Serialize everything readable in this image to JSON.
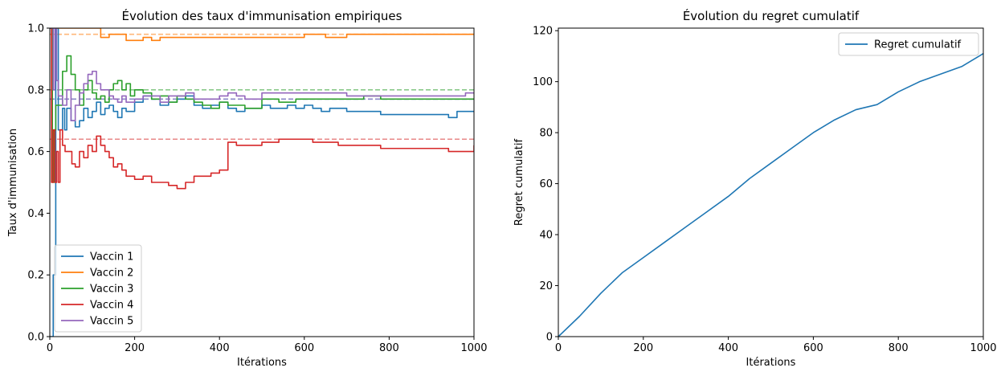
{
  "chart_data": [
    {
      "type": "line",
      "title": "Évolution des taux d'immunisation empiriques",
      "xlabel": "Itérations",
      "ylabel": "Taux d'immunisation",
      "xlim": [
        0,
        1000
      ],
      "ylim": [
        0,
        1.0
      ],
      "xticks": [
        0,
        200,
        400,
        600,
        800,
        1000
      ],
      "yticks": [
        0.0,
        0.2,
        0.4,
        0.6,
        0.8,
        1.0
      ],
      "legend_position": "lower-left",
      "grid": false,
      "series": [
        {
          "name": "Vaccin 1",
          "color": "#1f77b4",
          "true_rate": 0.77,
          "x": [
            0,
            2,
            8,
            14,
            20,
            25,
            30,
            35,
            40,
            50,
            60,
            70,
            80,
            90,
            100,
            110,
            120,
            130,
            140,
            150,
            160,
            170,
            180,
            200,
            220,
            240,
            260,
            280,
            300,
            320,
            340,
            360,
            380,
            400,
            420,
            440,
            460,
            480,
            500,
            520,
            540,
            560,
            580,
            600,
            620,
            640,
            660,
            680,
            700,
            740,
            780,
            820,
            860,
            900,
            940,
            960,
            980,
            1000
          ],
          "y": [
            0.0,
            0.0,
            0.2,
            1.0,
            0.67,
            0.67,
            0.74,
            0.67,
            0.74,
            0.7,
            0.68,
            0.7,
            0.74,
            0.71,
            0.73,
            0.76,
            0.72,
            0.74,
            0.75,
            0.73,
            0.71,
            0.74,
            0.73,
            0.76,
            0.78,
            0.77,
            0.75,
            0.76,
            0.77,
            0.78,
            0.75,
            0.74,
            0.75,
            0.76,
            0.74,
            0.73,
            0.74,
            0.74,
            0.75,
            0.74,
            0.74,
            0.75,
            0.74,
            0.75,
            0.74,
            0.73,
            0.74,
            0.74,
            0.73,
            0.73,
            0.72,
            0.72,
            0.72,
            0.72,
            0.71,
            0.73,
            0.73,
            0.73
          ]
        },
        {
          "name": "Vaccin 2",
          "color": "#ff7f0e",
          "true_rate": 0.98,
          "x": [
            0,
            10,
            20,
            40,
            60,
            80,
            100,
            110,
            120,
            140,
            160,
            180,
            200,
            220,
            240,
            260,
            280,
            300,
            320,
            350,
            400,
            450,
            500,
            550,
            600,
            650,
            700,
            750,
            800,
            850,
            900,
            950,
            1000
          ],
          "y": [
            1.0,
            1.0,
            1.0,
            1.0,
            1.0,
            1.0,
            1.0,
            1.0,
            0.97,
            0.98,
            0.98,
            0.96,
            0.96,
            0.97,
            0.96,
            0.97,
            0.97,
            0.97,
            0.97,
            0.97,
            0.97,
            0.97,
            0.97,
            0.97,
            0.98,
            0.97,
            0.98,
            0.98,
            0.98,
            0.98,
            0.98,
            0.98,
            0.98
          ]
        },
        {
          "name": "Vaccin 3",
          "color": "#2ca02c",
          "true_rate": 0.8,
          "x": [
            0,
            2,
            6,
            10,
            14,
            20,
            30,
            40,
            50,
            60,
            70,
            80,
            90,
            100,
            110,
            120,
            130,
            140,
            150,
            160,
            170,
            180,
            190,
            200,
            220,
            240,
            260,
            280,
            300,
            320,
            340,
            360,
            380,
            400,
            420,
            440,
            460,
            480,
            500,
            540,
            580,
            620,
            660,
            700,
            740,
            780,
            820,
            860,
            900,
            940,
            980,
            1000
          ],
          "y": [
            1.0,
            1.0,
            0.5,
            0.67,
            0.75,
            0.75,
            0.86,
            0.91,
            0.85,
            0.8,
            0.75,
            0.8,
            0.83,
            0.79,
            0.77,
            0.78,
            0.76,
            0.8,
            0.82,
            0.83,
            0.8,
            0.82,
            0.78,
            0.8,
            0.79,
            0.77,
            0.78,
            0.76,
            0.78,
            0.77,
            0.76,
            0.75,
            0.74,
            0.76,
            0.75,
            0.75,
            0.74,
            0.74,
            0.77,
            0.76,
            0.77,
            0.77,
            0.77,
            0.77,
            0.78,
            0.77,
            0.77,
            0.77,
            0.77,
            0.77,
            0.77,
            0.77
          ]
        },
        {
          "name": "Vaccin 4",
          "color": "#d62728",
          "true_rate": 0.64,
          "x": [
            0,
            4,
            8,
            12,
            16,
            20,
            24,
            30,
            36,
            44,
            52,
            60,
            70,
            80,
            90,
            100,
            110,
            120,
            130,
            140,
            150,
            160,
            170,
            180,
            200,
            220,
            240,
            260,
            280,
            300,
            320,
            340,
            360,
            380,
            400,
            420,
            440,
            460,
            480,
            500,
            520,
            540,
            560,
            580,
            600,
            620,
            640,
            660,
            680,
            700,
            740,
            780,
            820,
            860,
            900,
            940,
            980,
            1000
          ],
          "y": [
            1.0,
            0.5,
            0.67,
            0.5,
            0.6,
            0.5,
            0.67,
            0.62,
            0.6,
            0.6,
            0.56,
            0.55,
            0.6,
            0.58,
            0.62,
            0.6,
            0.65,
            0.62,
            0.6,
            0.58,
            0.55,
            0.56,
            0.54,
            0.52,
            0.51,
            0.52,
            0.5,
            0.5,
            0.49,
            0.48,
            0.5,
            0.52,
            0.52,
            0.53,
            0.54,
            0.63,
            0.62,
            0.62,
            0.62,
            0.63,
            0.63,
            0.64,
            0.64,
            0.64,
            0.64,
            0.63,
            0.63,
            0.63,
            0.62,
            0.62,
            0.62,
            0.61,
            0.61,
            0.61,
            0.61,
            0.6,
            0.6,
            0.62
          ]
        },
        {
          "name": "Vaccin 5",
          "color": "#9467bd",
          "true_rate": 0.77,
          "x": [
            0,
            4,
            8,
            12,
            16,
            20,
            30,
            40,
            50,
            60,
            70,
            80,
            90,
            100,
            110,
            120,
            130,
            140,
            150,
            160,
            170,
            180,
            200,
            220,
            240,
            260,
            280,
            300,
            320,
            340,
            360,
            380,
            400,
            420,
            440,
            460,
            480,
            500,
            540,
            580,
            620,
            660,
            700,
            740,
            780,
            820,
            860,
            900,
            940,
            980,
            1000
          ],
          "y": [
            1.0,
            1.0,
            0.8,
            1.0,
            0.83,
            0.78,
            0.75,
            0.8,
            0.7,
            0.75,
            0.79,
            0.82,
            0.85,
            0.86,
            0.82,
            0.8,
            0.8,
            0.78,
            0.77,
            0.76,
            0.78,
            0.76,
            0.77,
            0.78,
            0.78,
            0.76,
            0.78,
            0.78,
            0.79,
            0.77,
            0.77,
            0.77,
            0.78,
            0.79,
            0.78,
            0.77,
            0.77,
            0.79,
            0.79,
            0.79,
            0.79,
            0.79,
            0.78,
            0.78,
            0.78,
            0.78,
            0.78,
            0.78,
            0.78,
            0.79,
            0.79
          ]
        }
      ]
    },
    {
      "type": "line",
      "title": "Évolution du regret cumulatif",
      "xlabel": "Itérations",
      "ylabel": "Regret cumulatif",
      "xlim": [
        0,
        1000
      ],
      "ylim": [
        0,
        121
      ],
      "xticks": [
        0,
        200,
        400,
        600,
        800,
        1000
      ],
      "yticks": [
        0,
        20,
        40,
        60,
        80,
        100,
        120
      ],
      "legend_position": "top-right",
      "grid": false,
      "series": [
        {
          "name": "Regret cumulatif",
          "color": "#1f77b4",
          "x": [
            0,
            50,
            100,
            150,
            200,
            250,
            300,
            350,
            400,
            450,
            500,
            550,
            600,
            650,
            700,
            750,
            800,
            850,
            900,
            950,
            1000
          ],
          "y": [
            0,
            8,
            17,
            25,
            31,
            37,
            43,
            49,
            55,
            62,
            68,
            74,
            80,
            85,
            89,
            91,
            96,
            100,
            103,
            106,
            111
          ]
        }
      ]
    }
  ]
}
